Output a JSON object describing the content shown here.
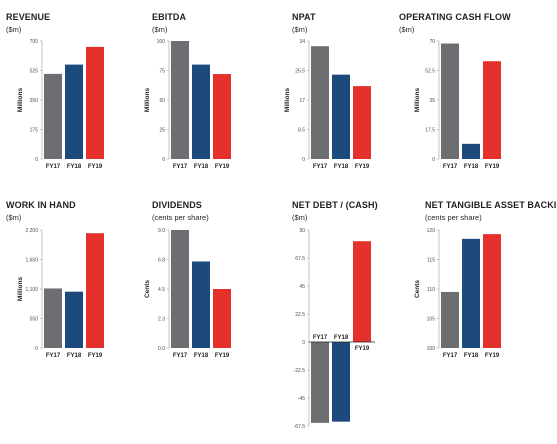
{
  "colors": {
    "FY17": "#6d6e71",
    "FY18": "#1c4a7c",
    "FY19": "#e5312b"
  },
  "chart_data": [
    {
      "type": "bar",
      "title": "REVENUE",
      "subtitle": "($m)",
      "ylabel": "Millions",
      "categories": [
        "FY17",
        "FY18",
        "FY19"
      ],
      "values": [
        505,
        560,
        665
      ],
      "yticks": [
        "0",
        "175",
        "350",
        "525",
        "700"
      ],
      "ylim": [
        0,
        700
      ]
    },
    {
      "type": "bar",
      "title": "EBITDA",
      "subtitle": "($m)",
      "ylabel": "Millions",
      "categories": [
        "FY17",
        "FY18",
        "FY19"
      ],
      "values": [
        100,
        80,
        72
      ],
      "yticks": [
        "0",
        "25",
        "50",
        "75",
        "100"
      ],
      "ylim": [
        0,
        100
      ]
    },
    {
      "type": "bar",
      "title": "NPAT",
      "subtitle": "($m)",
      "ylabel": "Millions",
      "categories": [
        "FY17",
        "FY18",
        "FY19"
      ],
      "values": [
        32.5,
        24.3,
        21
      ],
      "yticks": [
        "0",
        "8.5",
        "17",
        "25.5",
        "34"
      ],
      "ylim": [
        0,
        34
      ]
    },
    {
      "type": "bar",
      "title": "OPERATING CASH FLOW",
      "subtitle": "($m)",
      "ylabel": "Millions",
      "categories": [
        "FY17",
        "FY18",
        "FY19"
      ],
      "values": [
        68.5,
        9,
        58
      ],
      "yticks": [
        "0",
        "17.5",
        "35",
        "52.5",
        "70"
      ],
      "ylim": [
        0,
        70
      ]
    },
    {
      "type": "bar",
      "title": "WORK IN HAND",
      "subtitle": "($m)",
      "ylabel": "Millions",
      "categories": [
        "FY17",
        "FY18",
        "FY19"
      ],
      "values": [
        1110,
        1050,
        2140
      ],
      "yticks": [
        "0",
        "550",
        "1,100",
        "1,650",
        "2,200"
      ],
      "ylim": [
        0,
        2200
      ]
    },
    {
      "type": "bar",
      "title": "DIVIDENDS",
      "subtitle": "(cents per share)",
      "ylabel": "Cents",
      "categories": [
        "FY17",
        "FY18",
        "FY19"
      ],
      "values": [
        9.0,
        6.6,
        4.5
      ],
      "yticks": [
        "0.0",
        "2.3",
        "4.5",
        "6.8",
        "9.0"
      ],
      "ylim": [
        0,
        9
      ]
    },
    {
      "type": "bar",
      "title": "NET DEBT / (CASH)",
      "subtitle": "($m)",
      "ylabel": "",
      "categories": [
        "FY17",
        "FY18",
        "FY19"
      ],
      "values": [
        -65,
        -64,
        81
      ],
      "yticks": [
        "-67.5",
        "-45",
        "-22.5",
        "0",
        "22.5",
        "45",
        "67.5",
        "90"
      ],
      "ylim": [
        -67.5,
        90
      ]
    },
    {
      "type": "bar",
      "title": "NET TANGIBLE ASSET BACKING",
      "subtitle": "(cents per share)",
      "ylabel": "Cents",
      "categories": [
        "FY17",
        "FY18",
        "FY19"
      ],
      "values": [
        109.5,
        118.5,
        119.3
      ],
      "yticks": [
        "100",
        "105",
        "110",
        "115",
        "120"
      ],
      "ylim": [
        100,
        120
      ]
    }
  ]
}
